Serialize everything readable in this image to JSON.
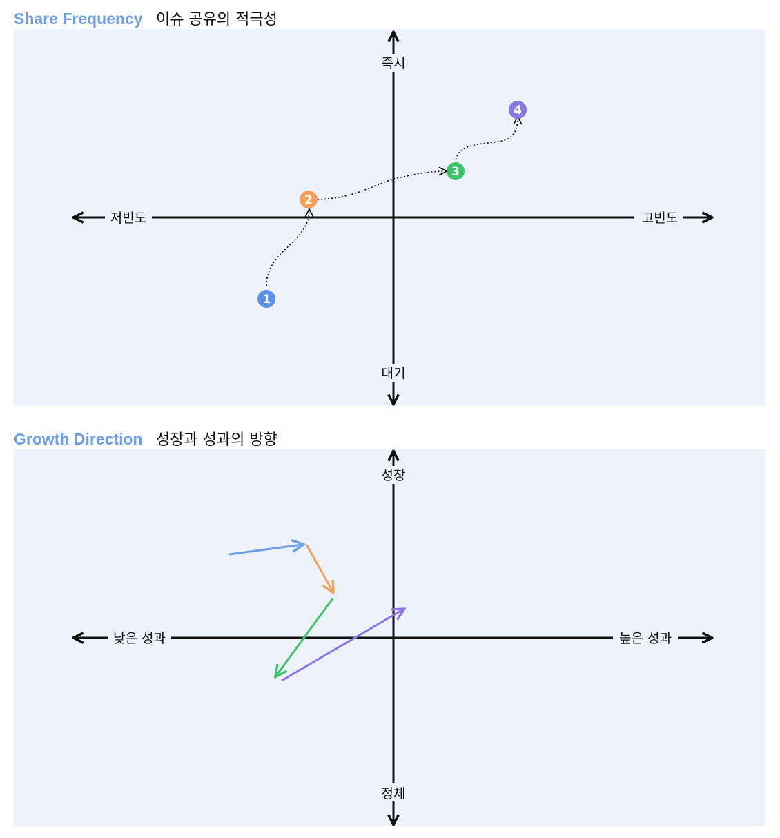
{
  "share_frequency": {
    "title_en": "Share Frequency",
    "title_ko": "이슈 공유의 적극성",
    "axis": {
      "top": "즉시",
      "bottom": "대기",
      "left": "저빈도",
      "right": "고빈도"
    },
    "points": [
      {
        "label": "1",
        "color": "#5b93e8"
      },
      {
        "label": "2",
        "color": "#f5a05a"
      },
      {
        "label": "3",
        "color": "#3cc46a"
      },
      {
        "label": "4",
        "color": "#8a76e4"
      }
    ],
    "path_style": "dotted"
  },
  "growth_direction": {
    "title_en": "Growth Direction",
    "title_ko": "성장과 성과의 방향",
    "axis": {
      "top": "성장",
      "bottom": "정체",
      "left": "낮은 성과",
      "right": "높은 성과"
    },
    "vectors": [
      {
        "color": "#6f9ee6"
      },
      {
        "color": "#f5a05a"
      },
      {
        "color": "#3cc46a"
      },
      {
        "color": "#8a76e4"
      }
    ]
  },
  "colors": {
    "accent": "#6f9ee6",
    "panel_bg": "#eef3fb",
    "axis": "#111111"
  }
}
